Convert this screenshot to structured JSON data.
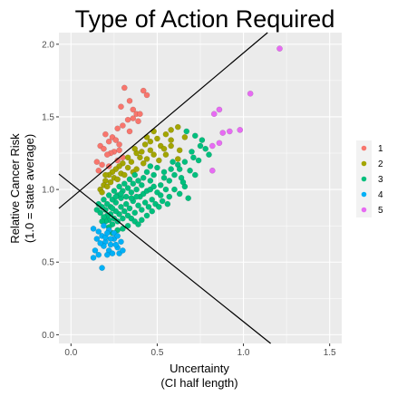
{
  "chart_data": {
    "type": "scatter",
    "title": "Type of Action Required",
    "xlabel": [
      "Uncertainty",
      "(CI half length)"
    ],
    "ylabel": [
      "Relative Cancer Risk",
      "(1.0 = state average)"
    ],
    "xlim": [
      -0.07,
      1.57
    ],
    "ylim": [
      -0.06,
      2.08
    ],
    "xticks": [
      0.0,
      0.5,
      1.0,
      1.5
    ],
    "xtick_labels": [
      "0.0",
      "0.5",
      "1.0",
      "1.5"
    ],
    "yticks": [
      0.0,
      0.5,
      1.0,
      1.5,
      2.0
    ],
    "ytick_labels": [
      "0.0",
      "0.5",
      "1.0",
      "1.5",
      "2.0"
    ],
    "grid": true,
    "legend_position": "right",
    "reference_lines": [
      {
        "intercept": 0.94,
        "slope": 1.0
      },
      {
        "intercept": 1.04,
        "slope": -0.95
      }
    ],
    "series": [
      {
        "name": "1",
        "color": "#F8766D",
        "points": [
          [
            0.31,
            1.7
          ],
          [
            0.42,
            1.68
          ],
          [
            0.44,
            1.65
          ],
          [
            0.34,
            1.61
          ],
          [
            0.29,
            1.57
          ],
          [
            0.36,
            1.55
          ],
          [
            0.38,
            1.52
          ],
          [
            0.4,
            1.52
          ],
          [
            0.36,
            1.49
          ],
          [
            0.33,
            1.48
          ],
          [
            0.39,
            1.47
          ],
          [
            0.3,
            1.44
          ],
          [
            0.27,
            1.42
          ],
          [
            0.34,
            1.4
          ],
          [
            0.2,
            1.38
          ],
          [
            0.24,
            1.36
          ],
          [
            0.26,
            1.34
          ],
          [
            0.22,
            1.33
          ],
          [
            0.28,
            1.31
          ],
          [
            0.17,
            1.3
          ],
          [
            0.19,
            1.28
          ],
          [
            0.25,
            1.26
          ],
          [
            0.28,
            1.27
          ],
          [
            0.23,
            1.25
          ],
          [
            0.21,
            1.24
          ],
          [
            0.3,
            1.22
          ],
          [
            0.15,
            1.19
          ],
          [
            0.18,
            1.17
          ],
          [
            0.27,
            1.2
          ],
          [
            0.22,
            1.16
          ],
          [
            0.16,
            1.13
          ]
        ]
      },
      {
        "name": "2",
        "color": "#A3A500",
        "points": [
          [
            0.62,
            1.43
          ],
          [
            0.58,
            1.41
          ],
          [
            0.55,
            1.38
          ],
          [
            0.48,
            1.4
          ],
          [
            0.5,
            1.35
          ],
          [
            0.44,
            1.36
          ],
          [
            0.43,
            1.31
          ],
          [
            0.46,
            1.33
          ],
          [
            0.52,
            1.3
          ],
          [
            0.58,
            1.3
          ],
          [
            0.63,
            1.27
          ],
          [
            0.46,
            1.27
          ],
          [
            0.48,
            1.24
          ],
          [
            0.38,
            1.25
          ],
          [
            0.37,
            1.28
          ],
          [
            0.41,
            1.26
          ],
          [
            0.55,
            1.24
          ],
          [
            0.44,
            1.21
          ],
          [
            0.4,
            1.22
          ],
          [
            0.51,
            1.2
          ],
          [
            0.62,
            1.21
          ],
          [
            0.33,
            1.22
          ],
          [
            0.35,
            1.19
          ],
          [
            0.42,
            1.18
          ],
          [
            0.3,
            1.18
          ],
          [
            0.28,
            1.16
          ],
          [
            0.26,
            1.14
          ],
          [
            0.24,
            1.12
          ],
          [
            0.29,
            1.11
          ],
          [
            0.33,
            1.15
          ],
          [
            0.36,
            1.12
          ],
          [
            0.22,
            1.1
          ],
          [
            0.25,
            1.08
          ],
          [
            0.2,
            1.06
          ],
          [
            0.23,
            1.05
          ],
          [
            0.27,
            1.07
          ],
          [
            0.19,
            1.03
          ],
          [
            0.21,
            1.02
          ],
          [
            0.17,
            1.0
          ],
          [
            0.18,
            0.98
          ],
          [
            0.31,
            1.1
          ],
          [
            0.38,
            1.14
          ],
          [
            0.2,
            1.1
          ],
          [
            0.58,
            1.34
          ],
          [
            0.66,
            1.36
          ],
          [
            0.54,
            1.28
          ]
        ]
      },
      {
        "name": "3",
        "color": "#00BF7D",
        "points": [
          [
            0.67,
            1.4
          ],
          [
            0.72,
            1.37
          ],
          [
            0.75,
            1.3
          ],
          [
            0.78,
            1.28
          ],
          [
            0.8,
            1.24
          ],
          [
            0.7,
            1.26
          ],
          [
            0.66,
            1.19
          ],
          [
            0.62,
            1.17
          ],
          [
            0.74,
            1.2
          ],
          [
            0.69,
            1.13
          ],
          [
            0.58,
            1.14
          ],
          [
            0.6,
            1.1
          ],
          [
            0.57,
            1.06
          ],
          [
            0.64,
            1.08
          ],
          [
            0.72,
            1.1
          ],
          [
            0.66,
            1.02
          ],
          [
            0.52,
            1.03
          ],
          [
            0.54,
            1.08
          ],
          [
            0.5,
            1.15
          ],
          [
            0.48,
            1.1
          ],
          [
            0.46,
            1.06
          ],
          [
            0.44,
            1.12
          ],
          [
            0.42,
            1.08
          ],
          [
            0.41,
            1.03
          ],
          [
            0.39,
            1.06
          ],
          [
            0.38,
            1.0
          ],
          [
            0.37,
            1.1
          ],
          [
            0.36,
            1.04
          ],
          [
            0.35,
            0.98
          ],
          [
            0.34,
            1.07
          ],
          [
            0.33,
            1.01
          ],
          [
            0.32,
            0.95
          ],
          [
            0.31,
            1.04
          ],
          [
            0.3,
            0.99
          ],
          [
            0.29,
            0.94
          ],
          [
            0.28,
            1.02
          ],
          [
            0.27,
            0.96
          ],
          [
            0.26,
            0.91
          ],
          [
            0.25,
            0.99
          ],
          [
            0.24,
            0.93
          ],
          [
            0.23,
            0.88
          ],
          [
            0.22,
            0.96
          ],
          [
            0.21,
            0.9
          ],
          [
            0.2,
            0.86
          ],
          [
            0.19,
            0.93
          ],
          [
            0.18,
            0.88
          ],
          [
            0.17,
            0.84
          ],
          [
            0.16,
            0.9
          ],
          [
            0.15,
            0.86
          ],
          [
            0.4,
            0.95
          ],
          [
            0.42,
            0.97
          ],
          [
            0.44,
            0.99
          ],
          [
            0.46,
            1.0
          ],
          [
            0.48,
            1.02
          ],
          [
            0.5,
            0.98
          ],
          [
            0.52,
            0.96
          ],
          [
            0.55,
            1.0
          ],
          [
            0.57,
            0.95
          ],
          [
            0.6,
            1.0
          ],
          [
            0.63,
            0.97
          ],
          [
            0.68,
            0.94
          ],
          [
            0.56,
            0.9
          ],
          [
            0.53,
            0.92
          ],
          [
            0.49,
            0.9
          ],
          [
            0.47,
            0.93
          ],
          [
            0.45,
            0.88
          ],
          [
            0.43,
            0.91
          ],
          [
            0.41,
            0.86
          ],
          [
            0.39,
            0.89
          ],
          [
            0.37,
            0.84
          ],
          [
            0.36,
            0.92
          ],
          [
            0.34,
            0.87
          ],
          [
            0.33,
            0.82
          ],
          [
            0.32,
            0.9
          ],
          [
            0.31,
            0.85
          ],
          [
            0.3,
            0.8
          ],
          [
            0.29,
            0.88
          ],
          [
            0.28,
            0.83
          ],
          [
            0.27,
            0.78
          ],
          [
            0.26,
            0.85
          ],
          [
            0.25,
            0.8
          ],
          [
            0.24,
            0.76
          ],
          [
            0.23,
            0.83
          ],
          [
            0.22,
            0.79
          ],
          [
            0.21,
            0.82
          ],
          [
            0.2,
            0.78
          ],
          [
            0.19,
            0.81
          ],
          [
            0.18,
            0.78
          ],
          [
            0.35,
            0.8
          ],
          [
            0.37,
            0.78
          ],
          [
            0.39,
            0.76
          ],
          [
            0.41,
            0.79
          ],
          [
            0.3,
            0.73
          ],
          [
            0.33,
            0.75
          ],
          [
            0.27,
            0.72
          ],
          [
            0.24,
            0.7
          ],
          [
            0.22,
            0.74
          ],
          [
            0.38,
            0.95
          ],
          [
            0.35,
            0.94
          ],
          [
            0.29,
            0.97
          ],
          [
            0.26,
            0.95
          ],
          [
            0.24,
            0.87
          ],
          [
            0.44,
            0.82
          ],
          [
            0.47,
            0.85
          ],
          [
            0.51,
            0.88
          ],
          [
            0.54,
            1.12
          ],
          [
            0.59,
            1.19
          ],
          [
            0.46,
            1.16
          ],
          [
            0.63,
            1.14
          ],
          [
            0.76,
            1.34
          ],
          [
            0.71,
            1.22
          ],
          [
            0.65,
            1.05
          ]
        ]
      },
      {
        "name": "4",
        "color": "#00B0F6",
        "points": [
          [
            0.13,
            0.73
          ],
          [
            0.16,
            0.71
          ],
          [
            0.19,
            0.75
          ],
          [
            0.22,
            0.72
          ],
          [
            0.18,
            0.68
          ],
          [
            0.15,
            0.66
          ],
          [
            0.2,
            0.64
          ],
          [
            0.23,
            0.62
          ],
          [
            0.25,
            0.66
          ],
          [
            0.27,
            0.6
          ],
          [
            0.22,
            0.58
          ],
          [
            0.19,
            0.61
          ],
          [
            0.17,
            0.63
          ],
          [
            0.28,
            0.56
          ],
          [
            0.24,
            0.56
          ],
          [
            0.21,
            0.55
          ],
          [
            0.26,
            0.62
          ],
          [
            0.29,
            0.64
          ],
          [
            0.3,
            0.58
          ],
          [
            0.14,
            0.58
          ],
          [
            0.16,
            0.55
          ],
          [
            0.13,
            0.53
          ],
          [
            0.18,
            0.46
          ],
          [
            0.2,
            0.67
          ],
          [
            0.25,
            0.7
          ],
          [
            0.27,
            0.68
          ],
          [
            0.23,
            0.66
          ],
          [
            0.21,
            0.7
          ]
        ]
      },
      {
        "name": "5",
        "color": "#E76BF3",
        "points": [
          [
            1.21,
            1.97
          ],
          [
            1.04,
            1.66
          ],
          [
            0.86,
            1.55
          ],
          [
            0.83,
            1.52
          ],
          [
            0.98,
            1.41
          ],
          [
            0.92,
            1.4
          ],
          [
            0.88,
            1.39
          ],
          [
            0.86,
            1.32
          ],
          [
            0.82,
            1.3
          ],
          [
            0.82,
            1.13
          ]
        ]
      }
    ],
    "colors": {
      "panel_background": "#EBEBEB",
      "grid_major": "#FFFFFF",
      "legend_key_background": "#F2F2F2",
      "reference_line": "#000000"
    }
  }
}
